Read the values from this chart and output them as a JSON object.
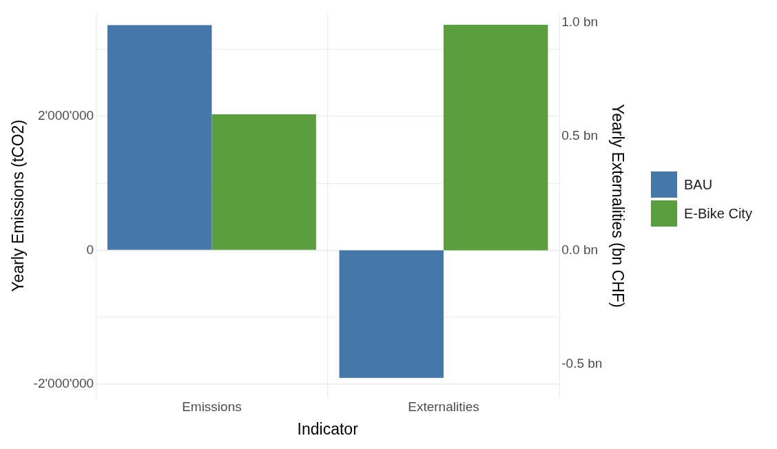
{
  "chart_data": {
    "type": "bar",
    "xlabel": "Indicator",
    "ylabel": "Yearly Emissions (tCO2)",
    "y2label": "Yearly Externalities (bn CHF)",
    "categories": [
      "Emissions",
      "Externalities"
    ],
    "series": [
      {
        "name": "BAU",
        "color": "#4477aa",
        "values": [
          3360000,
          null
        ]
      },
      {
        "name": "E-Bike City",
        "color": "#5a9e3e",
        "values": [
          2030000,
          null
        ]
      },
      {
        "color": "#4477aa",
        "axis": "y2",
        "values": [
          null,
          -0.56
        ]
      },
      {
        "color": "#5a9e3e",
        "axis": "y2",
        "values": [
          null,
          0.99
        ]
      }
    ],
    "ylim": [
      -2200000,
      3530000
    ],
    "yticks": [
      {
        "value": -2000000,
        "label": "-2'000'000"
      },
      {
        "value": -1000000,
        "label": null
      },
      0,
      {
        "value": 1000000,
        "label": null
      },
      {
        "value": 2000000,
        "label": "2'000'000"
      },
      {
        "value": 3000000,
        "label": null
      }
    ],
    "y2lim": [
      -0.647,
      1.038
    ],
    "y2ticks": [
      {
        "value": -0.5,
        "label": "-0.5 bn"
      },
      {
        "value": 0,
        "label": "0.0 bn"
      },
      {
        "value": 0.5,
        "label": "0.5 bn"
      },
      {
        "value": 1,
        "label": "1.0 bn"
      }
    ],
    "grid": true,
    "legend": "right"
  }
}
